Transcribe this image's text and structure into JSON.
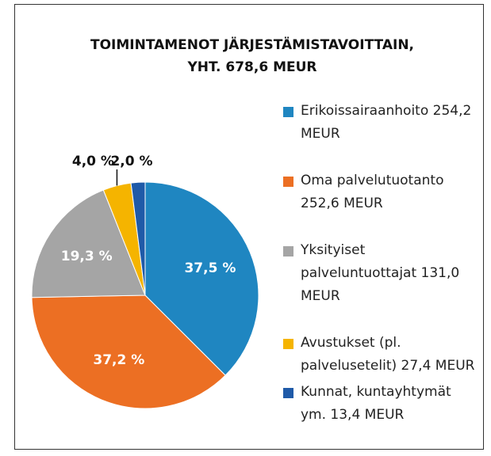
{
  "chart_data": {
    "type": "pie",
    "title": [
      "TOIMINTAMENOT JÄRJESTÄMISTAVOITTAIN,",
      "YHT. 678,6 MEUR"
    ],
    "series": [
      {
        "name": "Erikoissairaanhoito 254,2 MEUR",
        "color": "#1f86c1",
        "values": [
          37.5
        ],
        "value_labels": [
          "37,5 %"
        ]
      },
      {
        "name": "Oma palvelutuotanto 252,6 MEUR",
        "color": "#ec6f23",
        "values": [
          37.2
        ],
        "value_labels": [
          "37,2 %"
        ]
      },
      {
        "name": "Yksityiset palveluntuottajat 131,0 MEUR",
        "color": "#a5a5a5",
        "values": [
          19.3
        ],
        "value_labels": [
          "19,3 %"
        ]
      },
      {
        "name": "Avustukset (pl. palvelusetelit) 27,4 MEUR",
        "color": "#f5b400",
        "values": [
          4.0
        ],
        "value_labels": [
          "4,0 %"
        ]
      },
      {
        "name": "Kunnat, kuntayhtymät ym. 13,4 MEUR",
        "color": "#1f5aa8",
        "values": [
          2.0
        ],
        "value_labels": [
          "2,0 %"
        ]
      }
    ]
  }
}
